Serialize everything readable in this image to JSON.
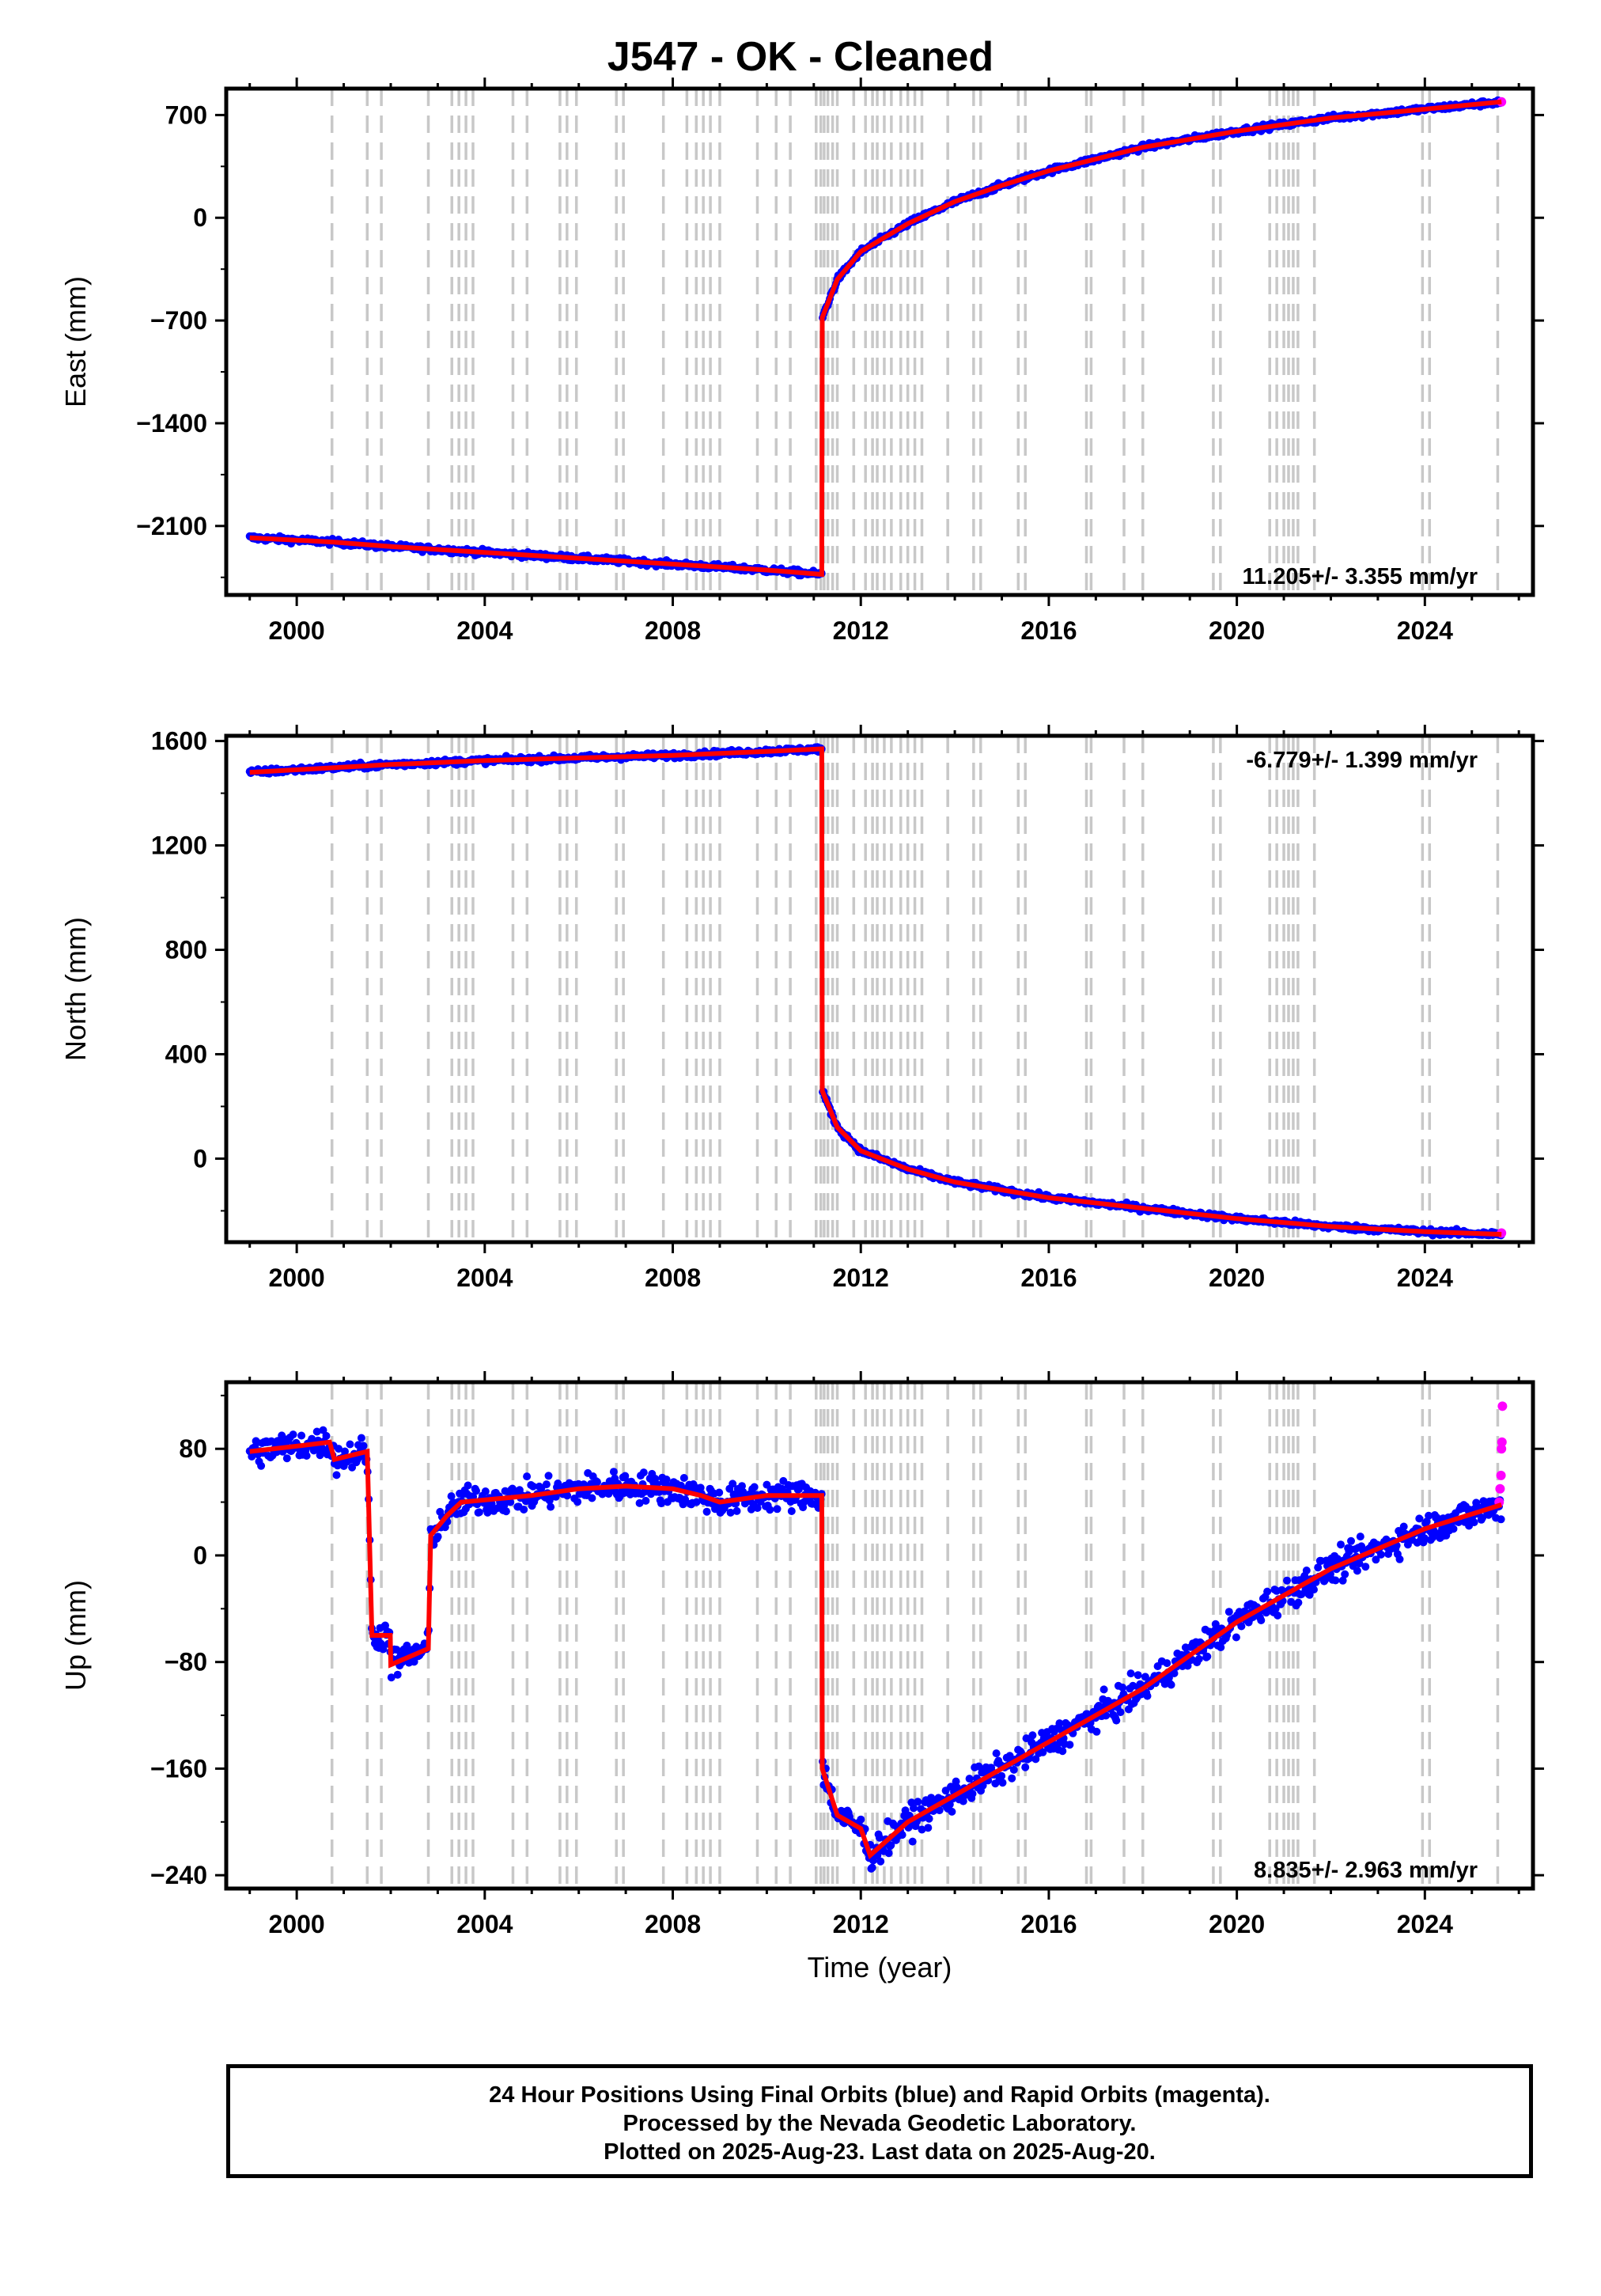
{
  "title": "J547  - OK - Cleaned",
  "colors": {
    "final_orbits": "#0000ff",
    "rapid_orbits": "#ff00ff",
    "model": "#ff0000",
    "event_lines": "#c8c8c8"
  },
  "footer": {
    "line1": "24 Hour Positions Using Final Orbits (blue) and Rapid Orbits (magenta).",
    "line2": "Processed by the Nevada Geodetic Laboratory.",
    "line3": "Plotted on 2025-Aug-23. Last data on 2025-Aug-20."
  },
  "chart_data": [
    {
      "type": "scatter",
      "ylabel": "East (mm)",
      "xlabel": "",
      "xlim": [
        1998.5,
        2026.3
      ],
      "ylim": [
        -2570,
        880
      ],
      "xticks": [
        2000,
        2004,
        2008,
        2012,
        2016,
        2020,
        2024
      ],
      "yticks": [
        700,
        0,
        -700,
        -1400,
        -2100
      ],
      "velocity_text": "11.205+/- 3.355 mm/yr",
      "velocity_position": "bottom-right",
      "series": [
        {
          "name": "Final Orbits",
          "color": "#0000ff",
          "knots": [
            [
              1999.0,
              -2180
            ],
            [
              2000.8,
              -2210
            ],
            [
              2002.0,
              -2240
            ],
            [
              2004.0,
              -2280
            ],
            [
              2006.0,
              -2320
            ],
            [
              2008.0,
              -2360
            ],
            [
              2010.0,
              -2400
            ],
            [
              2011.17,
              -2430
            ],
            [
              2011.18,
              -680
            ],
            [
              2011.5,
              -420
            ],
            [
              2012.0,
              -230
            ],
            [
              2013.0,
              -40
            ],
            [
              2014.0,
              110
            ],
            [
              2015.0,
              220
            ],
            [
              2016.0,
              320
            ],
            [
              2018.0,
              480
            ],
            [
              2020.0,
              590
            ],
            [
              2022.0,
              680
            ],
            [
              2024.0,
              740
            ],
            [
              2025.63,
              790
            ]
          ]
        },
        {
          "name": "Rapid Orbits",
          "color": "#ff00ff",
          "points": [
            [
              2025.63,
              790
            ]
          ]
        }
      ]
    },
    {
      "type": "scatter",
      "ylabel": "North (mm)",
      "xlabel": "",
      "xlim": [
        1998.5,
        2026.3
      ],
      "ylim": [
        -320,
        1620
      ],
      "xticks": [
        2000,
        2004,
        2008,
        2012,
        2016,
        2020,
        2024
      ],
      "yticks": [
        1600,
        1200,
        800,
        400,
        0
      ],
      "velocity_text": "-6.779+/- 1.399 mm/yr",
      "velocity_position": "top-right",
      "series": [
        {
          "name": "Final Orbits",
          "color": "#0000ff",
          "knots": [
            [
              1999.0,
              1480
            ],
            [
              2001.0,
              1500
            ],
            [
              2002.0,
              1510
            ],
            [
              2004.0,
              1525
            ],
            [
              2006.0,
              1535
            ],
            [
              2008.0,
              1545
            ],
            [
              2010.0,
              1560
            ],
            [
              2011.17,
              1570
            ],
            [
              2011.18,
              260
            ],
            [
              2011.5,
              120
            ],
            [
              2012.0,
              30
            ],
            [
              2013.0,
              -40
            ],
            [
              2014.0,
              -90
            ],
            [
              2015.0,
              -120
            ],
            [
              2016.0,
              -150
            ],
            [
              2018.0,
              -190
            ],
            [
              2020.0,
              -230
            ],
            [
              2022.0,
              -260
            ],
            [
              2024.0,
              -280
            ],
            [
              2025.63,
              -290
            ]
          ]
        },
        {
          "name": "Rapid Orbits",
          "color": "#ff00ff",
          "points": [
            [
              2025.63,
              -285
            ]
          ]
        }
      ]
    },
    {
      "type": "scatter",
      "ylabel": "Up (mm)",
      "xlabel": "Time (year)",
      "xlim": [
        1998.5,
        2026.3
      ],
      "ylim": [
        -250,
        130
      ],
      "xticks": [
        2000,
        2004,
        2008,
        2012,
        2016,
        2020,
        2024
      ],
      "yticks": [
        80,
        0,
        -80,
        -160,
        -240
      ],
      "velocity_text": "8.835+/- 2.963 mm/yr",
      "velocity_position": "bottom-right",
      "series": [
        {
          "name": "Final Orbits",
          "color": "#0000ff",
          "knots": [
            [
              1999.0,
              78
            ],
            [
              2000.0,
              82
            ],
            [
              2000.7,
              85
            ],
            [
              2000.8,
              72
            ],
            [
              2001.5,
              78
            ],
            [
              2001.6,
              -60
            ],
            [
              2001.99,
              -60
            ],
            [
              2002.0,
              -82
            ],
            [
              2002.8,
              -70
            ],
            [
              2002.85,
              15
            ],
            [
              2003.2,
              30
            ],
            [
              2003.5,
              40
            ],
            [
              2005.0,
              45
            ],
            [
              2006.0,
              50
            ],
            [
              2007.0,
              52
            ],
            [
              2008.0,
              50
            ],
            [
              2008.6,
              45
            ],
            [
              2009.0,
              40
            ],
            [
              2010.0,
              45
            ],
            [
              2011.17,
              45
            ],
            [
              2011.18,
              -160
            ],
            [
              2011.5,
              -195
            ],
            [
              2012.0,
              -205
            ],
            [
              2012.2,
              -225
            ],
            [
              2013.0,
              -200
            ],
            [
              2014.0,
              -180
            ],
            [
              2016.0,
              -140
            ],
            [
              2018.0,
              -100
            ],
            [
              2020.0,
              -50
            ],
            [
              2022.0,
              -10
            ],
            [
              2024.0,
              20
            ],
            [
              2025.63,
              38
            ]
          ]
        },
        {
          "name": "Rapid Orbits",
          "color": "#ff00ff",
          "points": [
            [
              2025.58,
              40
            ],
            [
              2025.6,
              50
            ],
            [
              2025.62,
              60
            ],
            [
              2025.63,
              80
            ],
            [
              2025.64,
              85
            ],
            [
              2025.65,
              112
            ]
          ]
        }
      ]
    }
  ],
  "event_lines": [
    2000.75,
    2001.5,
    2001.8,
    2002.8,
    2003.3,
    2003.45,
    2003.6,
    2003.75,
    2004.6,
    2004.9,
    2005.6,
    2005.75,
    2005.95,
    2006.8,
    2006.95,
    2007.8,
    2008.3,
    2008.5,
    2008.65,
    2008.8,
    2009.0,
    2009.8,
    2010.2,
    2010.5,
    2011.05,
    2011.15,
    2011.22,
    2011.3,
    2011.4,
    2011.5,
    2011.85,
    2012.1,
    2012.25,
    2012.35,
    2012.5,
    2012.65,
    2012.85,
    2013.0,
    2013.15,
    2013.3,
    2013.85,
    2014.4,
    2014.55,
    2015.35,
    2015.5,
    2016.8,
    2016.9,
    2017.6,
    2018.0,
    2019.5,
    2019.65,
    2020.7,
    2020.85,
    2021.0,
    2021.1,
    2021.2,
    2021.3,
    2021.65,
    2023.95,
    2024.1,
    2025.55
  ]
}
